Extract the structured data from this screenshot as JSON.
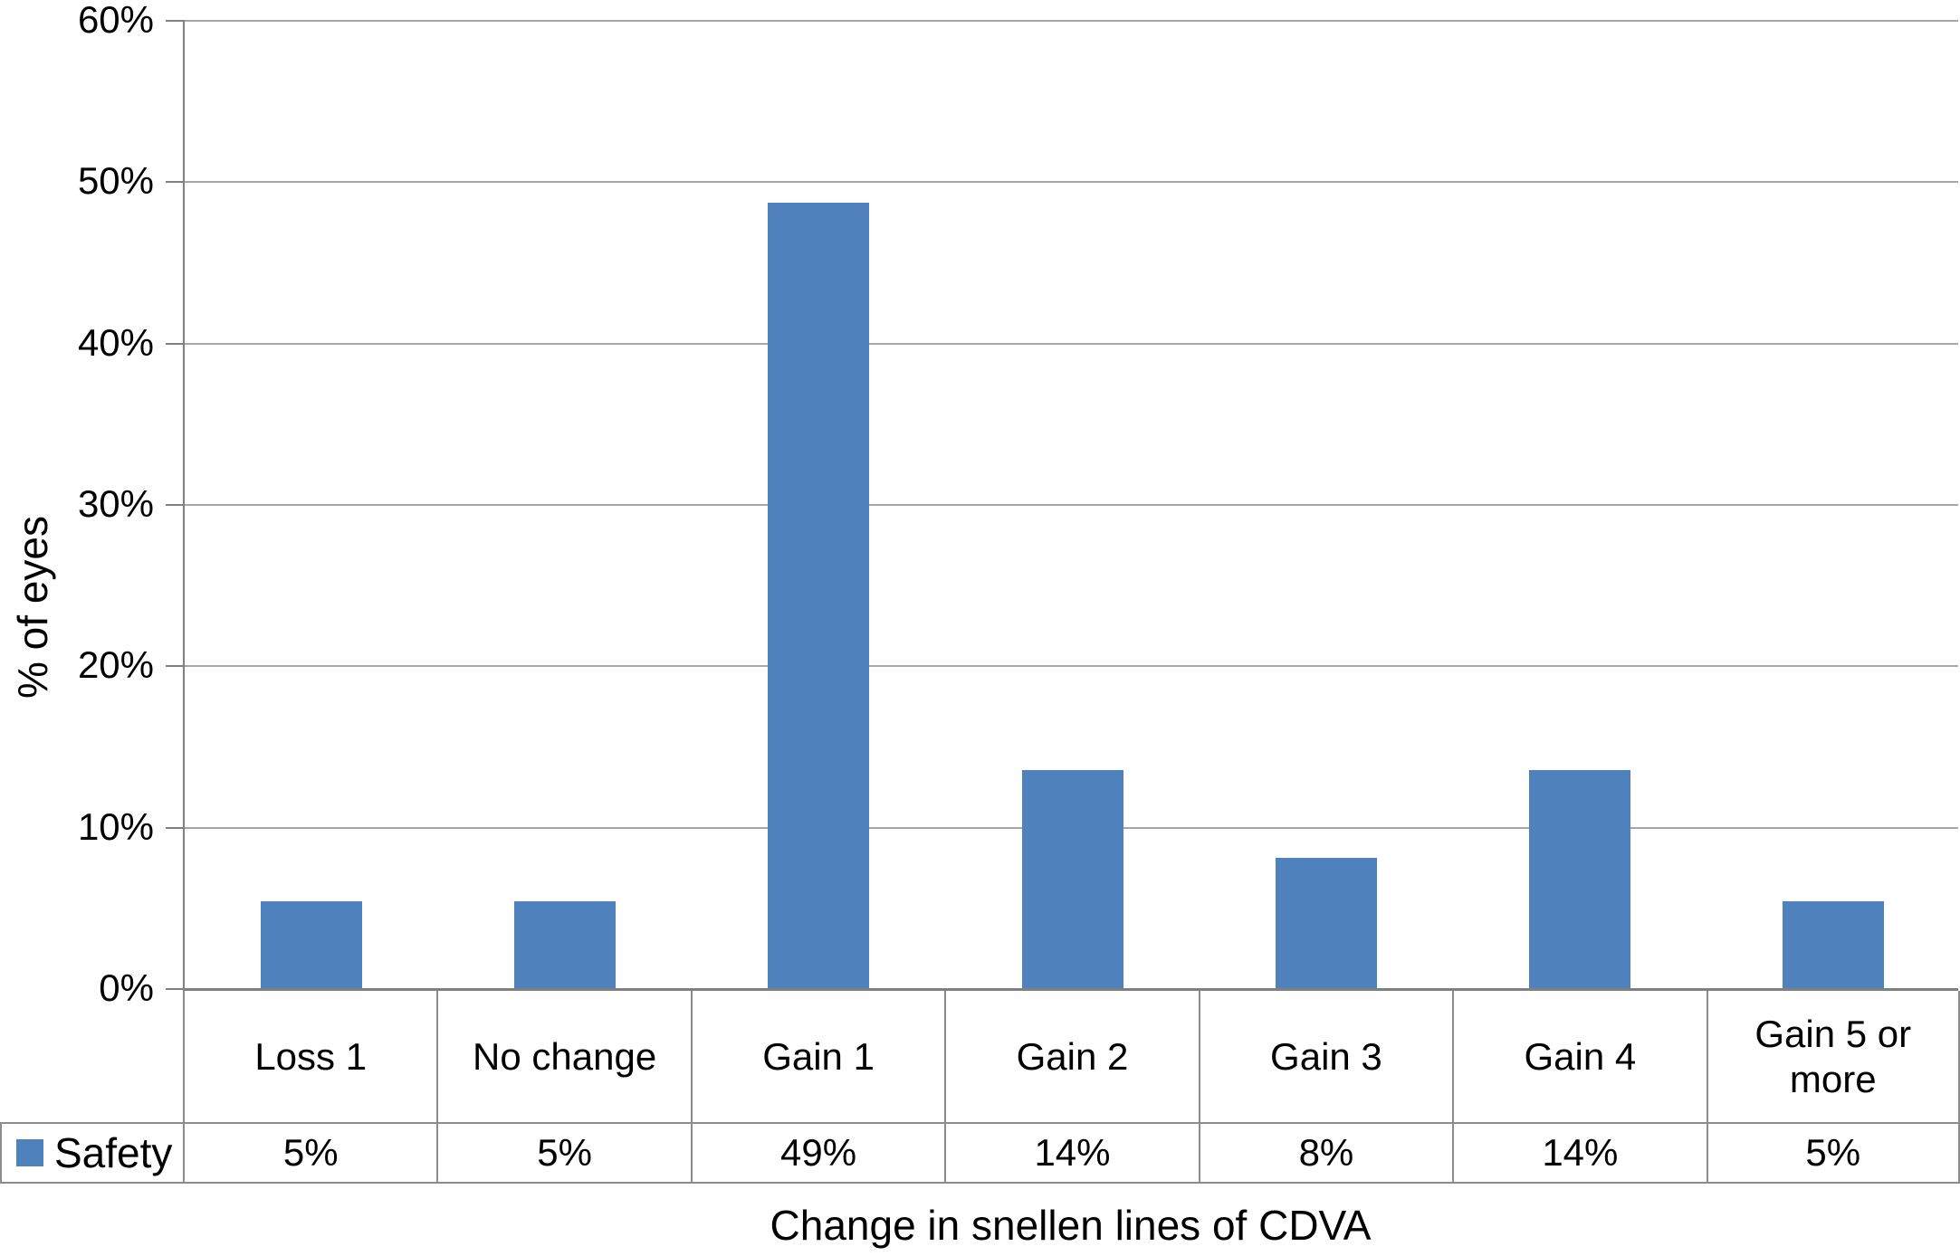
{
  "chart_data": {
    "type": "bar",
    "title": "",
    "xlabel": "Change in snellen lines of CDVA",
    "ylabel": "% of eyes",
    "categories": [
      "Loss 1",
      "No change",
      "Gain 1",
      "Gain  2",
      "Gain 3",
      "Gain 4",
      "Gain 5 or more"
    ],
    "series": [
      {
        "name": "Safety",
        "values": [
          5.4,
          5.4,
          48.7,
          13.5,
          8.1,
          13.5,
          5.4
        ],
        "display_labels": [
          "5%",
          "5%",
          "49%",
          "14%",
          "8%",
          "14%",
          "5%"
        ]
      }
    ],
    "ylim": [
      0,
      60
    ],
    "yticks_top_down": [
      "60%",
      "50%",
      "40%",
      "30%",
      "20%",
      "10%",
      "0%"
    ],
    "grid": true,
    "legend_position": "table-row-header",
    "colors": {
      "bar": "#4f81bd",
      "gridline": "#a6a6a6",
      "axis": "#808080",
      "table_border": "#8c8c8c",
      "text": "#000000"
    }
  }
}
